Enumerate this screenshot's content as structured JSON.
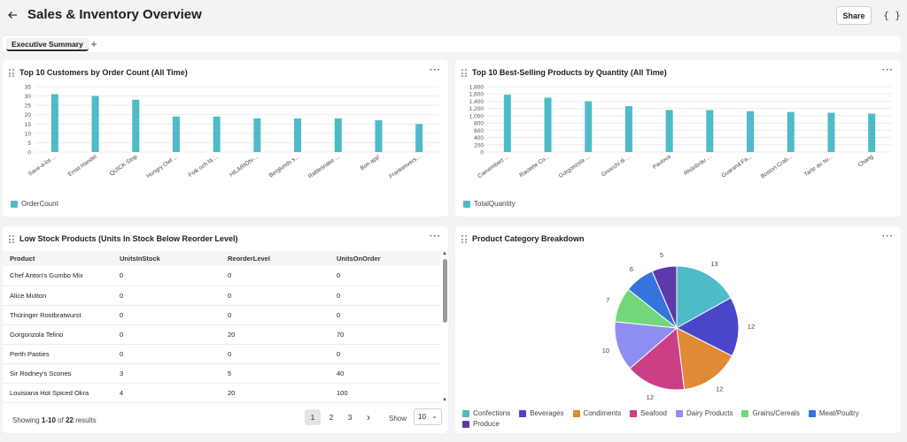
{
  "header": {
    "title": "Sales & Inventory Overview",
    "share_label": "Share",
    "json_label": "{ }"
  },
  "tabs": [
    {
      "label": "Executive Summary",
      "active": true
    }
  ],
  "tab_add_label": "+",
  "panels": {
    "customers": {
      "title": "Top 10 Customers by Order Count (All Time)",
      "kebab": "···",
      "legend": "OrderCount"
    },
    "products": {
      "title": "Top 10 Best-Selling Products by Quantity (All Time)",
      "kebab": "···",
      "legend": "TotalQuantity"
    },
    "low_stock": {
      "title": "Low Stock Products (Units In Stock Below Reorder Level)",
      "kebab": "···",
      "columns": [
        "Product",
        "UnitsInStock",
        "ReorderLevel",
        "UnitsOnOrder"
      ],
      "rows": [
        [
          "Chef Anton's Gumbo Mix",
          "0",
          "0",
          "0"
        ],
        [
          "Alice Mutton",
          "0",
          "0",
          "0"
        ],
        [
          "Thüringer Rostbratwurst",
          "0",
          "0",
          "0"
        ],
        [
          "Gorgonzola Telino",
          "0",
          "20",
          "70"
        ],
        [
          "Perth Pasties",
          "0",
          "0",
          "0"
        ],
        [
          "Sir Rodney's Scones",
          "3",
          "5",
          "40"
        ],
        [
          "Louisiana Hot Spiced Okra",
          "4",
          "20",
          "100"
        ]
      ],
      "footer": {
        "prefix": "Showing ",
        "range": "1-10",
        "of": " of ",
        "total": "22",
        "suffix": " results"
      },
      "pages": [
        "1",
        "2",
        "3"
      ],
      "next_label": "›",
      "show_label": "Show",
      "page_size": "10"
    },
    "category": {
      "title": "Product Category Breakdown",
      "kebab": "···"
    }
  },
  "colors": {
    "teal": "#4dbcc8",
    "indigo": "#4a45c9",
    "orange": "#e08a35",
    "magenta": "#cc3f86",
    "lavender": "#8e8ef0",
    "green": "#73d67a",
    "blue": "#3674dd",
    "purple": "#5c3aa8"
  },
  "chart_data": [
    {
      "type": "bar",
      "title": "Top 10 Customers by Order Count (All Time)",
      "categories": [
        "Save-a-lot ...",
        "Ernst Handel",
        "QUICK-Stop",
        "Hungry Owl ...",
        "Folk och fä ...",
        "HILARIÓN-...",
        "Berglunds s...",
        "Rattlesnake ...",
        "Bon app'",
        "Frankenvers..."
      ],
      "series": [
        {
          "name": "OrderCount",
          "values": [
            31,
            30,
            28,
            19,
            19,
            18,
            18,
            18,
            17,
            15
          ]
        }
      ],
      "yticks": [
        "0",
        "5",
        "10",
        "15",
        "20",
        "25",
        "30",
        "35"
      ],
      "ylim": [
        0,
        35
      ]
    },
    {
      "type": "bar",
      "title": "Top 10 Best-Selling Products by Quantity (All Time)",
      "categories": [
        "Camembert ...",
        "Raclette Co...",
        "Gorgonzola ...",
        "Gnocchi di ...",
        "Pavlova",
        "Rhönbräu ...",
        "Guaraná Fa...",
        "Boston Crab...",
        "Tarte au su...",
        "Chang"
      ],
      "series": [
        {
          "name": "TotalQuantity",
          "values": [
            1577,
            1496,
            1397,
            1263,
            1158,
            1155,
            1125,
            1103,
            1083,
            1057
          ]
        }
      ],
      "yticks": [
        "0",
        "200",
        "400",
        "600",
        "800",
        "1,000",
        "1,200",
        "1,400",
        "1,600",
        "1,800"
      ],
      "ylim": [
        0,
        1800
      ]
    },
    {
      "type": "pie",
      "title": "Product Category Breakdown",
      "categories": [
        "Confections",
        "Beverages",
        "Condiments",
        "Seafood",
        "Dairy Products",
        "Grains/Cereals",
        "Meat/Poultry",
        "Produce"
      ],
      "values": [
        13,
        12,
        12,
        12,
        10,
        7,
        6,
        5
      ]
    }
  ]
}
